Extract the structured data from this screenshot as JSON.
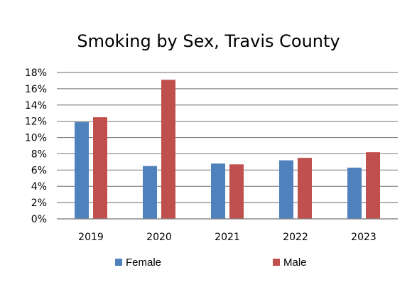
{
  "chart_data": {
    "type": "bar",
    "title": "Smoking by Sex, Travis County",
    "xlabel": "",
    "ylabel": "",
    "categories": [
      "2019",
      "2020",
      "2021",
      "2022",
      "2023"
    ],
    "series": [
      {
        "name": "Female",
        "color": "#4f81bd",
        "values": [
          0.119,
          0.065,
          0.068,
          0.072,
          0.063
        ]
      },
      {
        "name": "Male",
        "color": "#c0504d",
        "values": [
          0.125,
          0.171,
          0.067,
          0.075,
          0.082
        ]
      }
    ],
    "ylim": [
      0,
      0.18
    ],
    "y_ticks": [
      "0%",
      "2%",
      "4%",
      "6%",
      "8%",
      "10%",
      "12%",
      "14%",
      "16%",
      "18%"
    ],
    "grid": true,
    "legend_position": "bottom"
  }
}
